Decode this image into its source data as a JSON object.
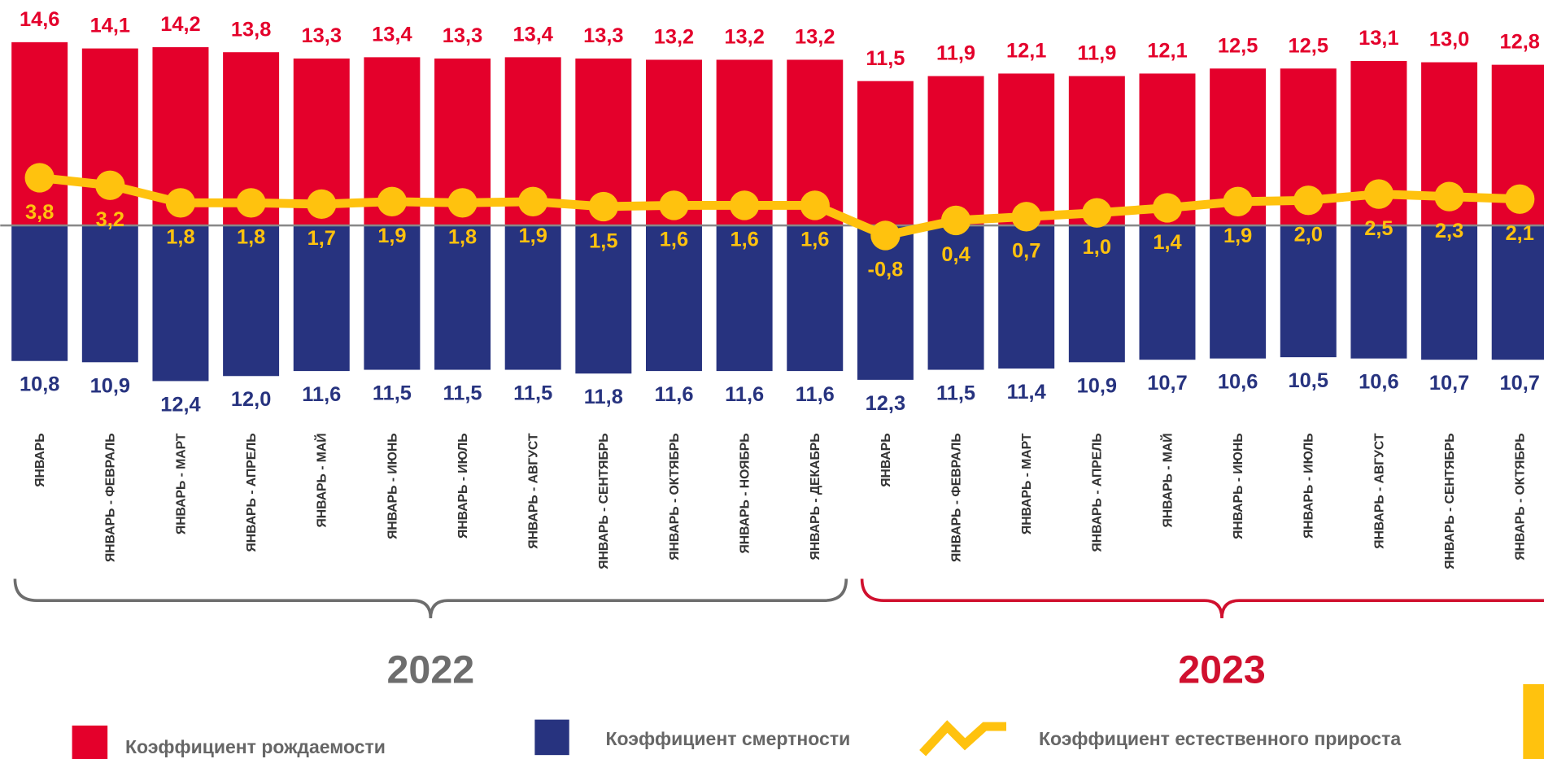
{
  "chart_data": {
    "type": "bar-line",
    "categories": [
      "ЯНВАРЬ",
      "ЯНВАРЬ - ФЕВРАЛЬ",
      "ЯНВАРЬ - МАРТ",
      "ЯНВАРЬ - АПРЕЛЬ",
      "ЯНВАРЬ - МАЙ",
      "ЯНВАРЬ - ИЮНЬ",
      "ЯНВАРЬ - ИЮЛЬ",
      "ЯНВАРЬ - АВГУСТ",
      "ЯНВАРЬ - СЕНТЯБРЬ",
      "ЯНВАРЬ - ОКТЯБРЬ",
      "ЯНВАРЬ - НОЯБРЬ",
      "ЯНВАРЬ - ДЕКАБРЬ",
      "ЯНВАРЬ",
      "ЯНВАРЬ - ФЕВРАЛЬ",
      "ЯНВАРЬ - МАРТ",
      "ЯНВАРЬ - АПРЕЛЬ",
      "ЯНВАРЬ - МАЙ",
      "ЯНВАРЬ - ИЮНЬ",
      "ЯНВАРЬ - ИЮЛЬ",
      "ЯНВАРЬ - АВГУСТ",
      "ЯНВАРЬ - СЕНТЯБРЬ",
      "ЯНВАРЬ - ОКТЯБРЬ"
    ],
    "series": [
      {
        "name": "Коэффициент рождаемости",
        "color": "#e4002b",
        "kind": "bar-up",
        "values": [
          14.6,
          14.1,
          14.2,
          13.8,
          13.3,
          13.4,
          13.3,
          13.4,
          13.3,
          13.2,
          13.2,
          13.2,
          11.5,
          11.9,
          12.1,
          11.9,
          12.1,
          12.5,
          12.5,
          13.1,
          13.0,
          12.8
        ],
        "value_labels": [
          "14,6",
          "14,1",
          "14,2",
          "13,8",
          "13,3",
          "13,4",
          "13,3",
          "13,4",
          "13,3",
          "13,2",
          "13,2",
          "13,2",
          "11,5",
          "11,9",
          "12,1",
          "11,9",
          "12,1",
          "12,5",
          "12,5",
          "13,1",
          "13,0",
          "12,8"
        ]
      },
      {
        "name": "Коэффициент смертности",
        "color": "#27337f",
        "kind": "bar-down",
        "values": [
          10.8,
          10.9,
          12.4,
          12.0,
          11.6,
          11.5,
          11.5,
          11.5,
          11.8,
          11.6,
          11.6,
          11.6,
          12.3,
          11.5,
          11.4,
          10.9,
          10.7,
          10.6,
          10.5,
          10.6,
          10.7,
          10.7
        ],
        "value_labels": [
          "10,8",
          "10,9",
          "12,4",
          "12,0",
          "11,6",
          "11,5",
          "11,5",
          "11,5",
          "11,8",
          "11,6",
          "11,6",
          "11,6",
          "12,3",
          "11,5",
          "11,4",
          "10,9",
          "10,7",
          "10,6",
          "10,5",
          "10,6",
          "10,7",
          "10,7"
        ]
      },
      {
        "name": "Коэффициент естественного прироста",
        "color": "#ffc20e",
        "kind": "line",
        "values": [
          3.8,
          3.2,
          1.8,
          1.8,
          1.7,
          1.9,
          1.8,
          1.9,
          1.5,
          1.6,
          1.6,
          1.6,
          -0.8,
          0.4,
          0.7,
          1.0,
          1.4,
          1.9,
          2.0,
          2.5,
          2.3,
          2.1
        ],
        "value_labels": [
          "3,8",
          "3,2",
          "1,8",
          "1,8",
          "1,7",
          "1,9",
          "1,8",
          "1,9",
          "1,5",
          "1,6",
          "1,6",
          "1,6",
          "-0,8",
          "0,4",
          "0,7",
          "1,0",
          "1,4",
          "1,9",
          "2,0",
          "2,5",
          "2,3",
          "2,1"
        ]
      }
    ],
    "groups": [
      {
        "label": "2022",
        "color": "#6d6d6d"
      },
      {
        "label": "2023",
        "color": "#d0102e"
      }
    ]
  }
}
